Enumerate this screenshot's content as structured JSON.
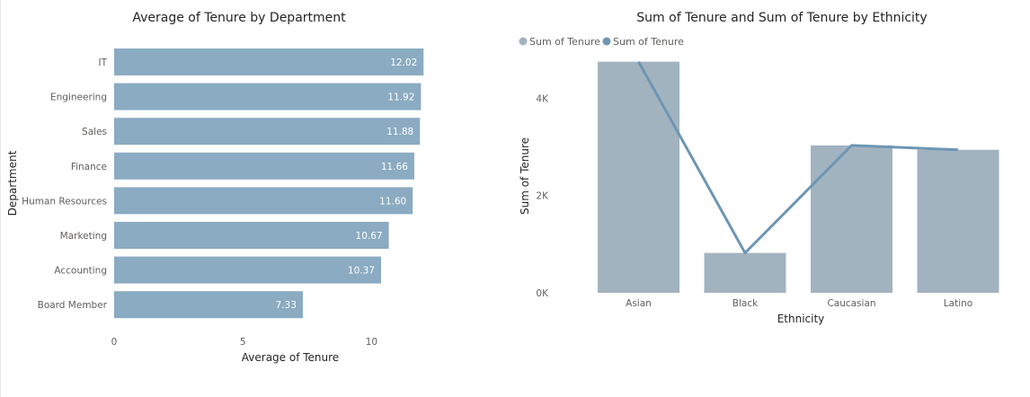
{
  "chart_data": [
    {
      "type": "bar",
      "orientation": "horizontal",
      "title": "Average of Tenure by Department",
      "xlabel": "Average of Tenure",
      "ylabel": "Department",
      "categories": [
        "IT",
        "Engineering",
        "Sales",
        "Finance",
        "Human Resources",
        "Marketing",
        "Accounting",
        "Board Member"
      ],
      "values": [
        12.02,
        11.92,
        11.88,
        11.66,
        11.6,
        10.67,
        10.37,
        7.33
      ],
      "data_labels": [
        "12.02",
        "11.92",
        "11.88",
        "11.66",
        "11.60",
        "10.67",
        "10.37",
        "7.33"
      ],
      "xlim": [
        0,
        12.5
      ],
      "xticks": [
        0,
        5,
        10
      ],
      "xtick_labels": [
        "0",
        "5",
        "10"
      ],
      "bar_color": "#8aabc1",
      "grid": false
    },
    {
      "type": "bar",
      "combo": "bar-line",
      "title": "Sum of Tenure and Sum of Tenure by Ethnicity",
      "xlabel": "Ethnicity",
      "ylabel": "Sum of Tenure",
      "categories": [
        "Asian",
        "Black",
        "Caucasian",
        "Latino"
      ],
      "series": [
        {
          "name": "Sum of Tenure",
          "kind": "bar",
          "color": "#a2b3c0",
          "values": [
            4750,
            820,
            3030,
            2940
          ]
        },
        {
          "name": "Sum of Tenure",
          "kind": "line",
          "color": "#6d96b4",
          "values": [
            4750,
            820,
            3030,
            2940
          ]
        }
      ],
      "ylim": [
        0,
        5000
      ],
      "yticks": [
        0,
        2000,
        4000
      ],
      "ytick_labels": [
        "0K",
        "2K",
        "4K"
      ],
      "legend": "top-left",
      "grid": false
    }
  ]
}
